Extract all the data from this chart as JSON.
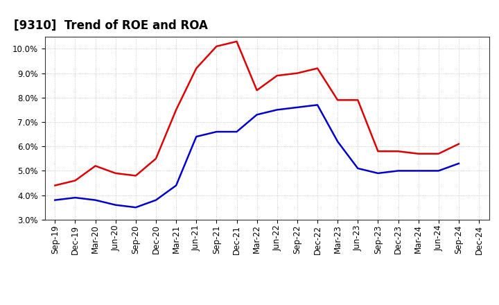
{
  "title": "[9310]  Trend of ROE and ROA",
  "ylim": [
    0.03,
    0.105
  ],
  "yticks": [
    0.03,
    0.04,
    0.05,
    0.06,
    0.07,
    0.08,
    0.09,
    0.1
  ],
  "ytick_labels": [
    "3.0%",
    "4.0%",
    "5.0%",
    "6.0%",
    "7.0%",
    "8.0%",
    "9.0%",
    "10.0%"
  ],
  "x_labels": [
    "Sep-19",
    "Dec-19",
    "Mar-20",
    "Jun-20",
    "Sep-20",
    "Dec-20",
    "Mar-21",
    "Jun-21",
    "Sep-21",
    "Dec-21",
    "Mar-22",
    "Jun-22",
    "Sep-22",
    "Dec-22",
    "Mar-23",
    "Jun-23",
    "Sep-23",
    "Dec-23",
    "Mar-24",
    "Jun-24",
    "Sep-24",
    "Dec-24"
  ],
  "roe": [
    0.044,
    0.046,
    0.052,
    0.049,
    0.048,
    0.055,
    0.075,
    0.092,
    0.101,
    0.103,
    0.083,
    0.089,
    0.09,
    0.092,
    0.079,
    0.079,
    0.058,
    0.058,
    0.057,
    0.057,
    0.061,
    null
  ],
  "roa": [
    0.038,
    0.039,
    0.038,
    0.036,
    0.035,
    0.038,
    0.044,
    0.064,
    0.066,
    0.066,
    0.073,
    0.075,
    0.076,
    0.077,
    0.062,
    0.051,
    0.049,
    0.05,
    0.05,
    0.05,
    0.053,
    null
  ],
  "roe_color": "#dd0000",
  "roa_color": "#0000cc",
  "background_color": "#ffffff",
  "grid_color": "#bbbbbb",
  "title_fontsize": 12,
  "legend_fontsize": 10,
  "tick_fontsize": 8.5
}
